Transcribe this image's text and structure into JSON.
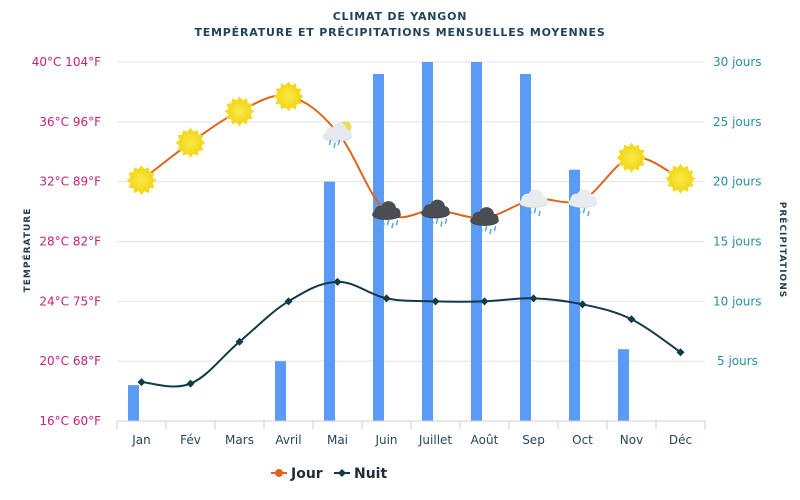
{
  "chart_data": {
    "type": "bar+line",
    "title": "CLIMAT DE YANGON",
    "subtitle": "TEMPÉRATURE ET PRÉCIPITATIONS MENSUELLES MOYENNES",
    "categories": [
      "Jan",
      "Fév",
      "Mars",
      "Avril",
      "Mai",
      "Juin",
      "Juillet",
      "Août",
      "Sep",
      "Oct",
      "Nov",
      "Déc"
    ],
    "left_axis": {
      "label": "TEMPÉRATURE",
      "range": [
        16,
        40
      ],
      "ticks": [
        {
          "value": 40,
          "label": "40°C 104°F"
        },
        {
          "value": 36,
          "label": "36°C 96°F"
        },
        {
          "value": 32,
          "label": "32°C 89°F"
        },
        {
          "value": 28,
          "label": "28°C 82°F"
        },
        {
          "value": 24,
          "label": "24°C 75°F"
        },
        {
          "value": 20,
          "label": "20°C 68°F"
        },
        {
          "value": 16,
          "label": "16°C 60°F"
        }
      ]
    },
    "right_axis": {
      "label": "PRÉCIPITATIONS",
      "range": [
        0,
        30
      ],
      "ticks": [
        {
          "value": 30,
          "label": "30 jours"
        },
        {
          "value": 25,
          "label": "25 jours"
        },
        {
          "value": 20,
          "label": "20 jours"
        },
        {
          "value": 15,
          "label": "15 jours"
        },
        {
          "value": 10,
          "label": "10 jours"
        },
        {
          "value": 5,
          "label": "5 jours"
        }
      ]
    },
    "grid": true,
    "legend_position": "bottom",
    "series": [
      {
        "name": "Précipitations",
        "type": "bar",
        "axis": "right",
        "color": "#5b9bf5",
        "values": [
          3,
          0,
          0,
          5,
          20,
          29,
          30,
          30,
          29,
          21,
          6,
          0
        ]
      },
      {
        "name": "Jour",
        "type": "line",
        "axis": "left",
        "color": "#e0641c",
        "values": [
          32.1,
          34.6,
          36.7,
          37.7,
          35.3,
          30.0,
          30.1,
          29.6,
          30.8,
          30.8,
          33.6,
          32.2
        ],
        "weather_icons": [
          "sun",
          "sun",
          "sun",
          "sun",
          "partly-cloudy-rain",
          "heavy-rain",
          "heavy-rain",
          "heavy-rain",
          "light-rain",
          "light-rain",
          "sun",
          "sun"
        ]
      },
      {
        "name": "Nuit",
        "type": "line",
        "axis": "left",
        "color": "#123a48",
        "values": [
          18.6,
          18.5,
          21.3,
          24.0,
          25.3,
          24.2,
          24.0,
          24.0,
          24.2,
          23.8,
          22.8,
          20.6
        ]
      }
    ]
  }
}
